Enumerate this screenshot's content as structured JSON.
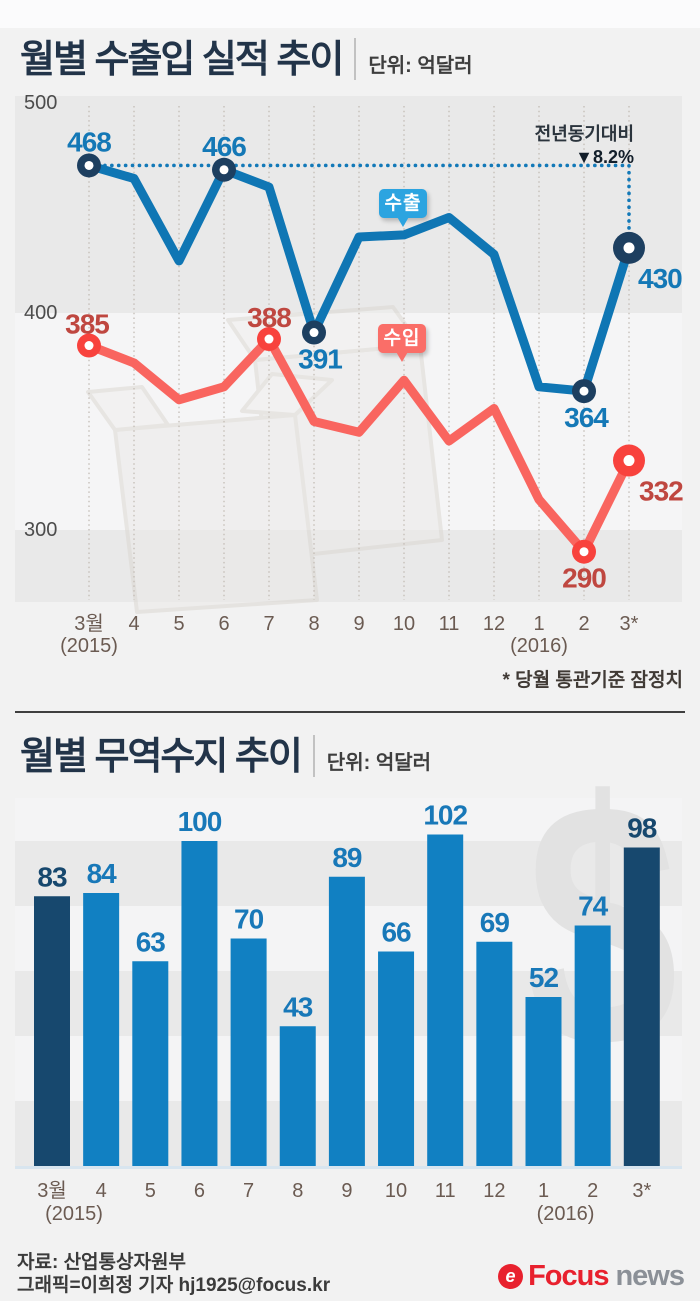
{
  "chart_data": [
    {
      "type": "line",
      "title": "월별 수출입 실적 추이",
      "unit_label": "단위: 억달러",
      "categories": [
        "3월",
        "4",
        "5",
        "6",
        "7",
        "8",
        "9",
        "10",
        "11",
        "12",
        "1",
        "2",
        "3*"
      ],
      "year_labels": [
        {
          "text": "(2015)",
          "month_index": 0
        },
        {
          "text": "(2016)",
          "month_index": 10
        }
      ],
      "yticks": [
        500,
        400,
        300
      ],
      "ylim": [
        265,
        500
      ],
      "annotation": {
        "line1": "전년동기대비",
        "line2": "▼8.2%"
      },
      "footnote": "* 당월 통관기준 잠정치",
      "series": [
        {
          "name": "수출",
          "color": "#0f76b4",
          "marker_color": "#1d3f60",
          "label_color": "#1478b6",
          "values": [
            468,
            462,
            424,
            466,
            458,
            391,
            435,
            436,
            444,
            427,
            366,
            364,
            430
          ],
          "labeled_points": [
            {
              "index": 0,
              "value": 468
            },
            {
              "index": 3,
              "value": 466
            },
            {
              "index": 5,
              "value": 391
            },
            {
              "index": 11,
              "value": 364
            },
            {
              "index": 12,
              "value": 430
            }
          ]
        },
        {
          "name": "수입",
          "color": "#f9655f",
          "marker_color": "#f8423d",
          "label_color": "#bf4740",
          "values": [
            385,
            377,
            360,
            366,
            388,
            350,
            345,
            369,
            341,
            356,
            314,
            290,
            332
          ],
          "labeled_points": [
            {
              "index": 0,
              "value": 385
            },
            {
              "index": 4,
              "value": 388
            },
            {
              "index": 11,
              "value": 290
            },
            {
              "index": 12,
              "value": 332
            }
          ]
        }
      ]
    },
    {
      "type": "bar",
      "title": "월별 무역수지 추이",
      "unit_label": "단위: 억달러",
      "categories": [
        "3월",
        "4",
        "5",
        "6",
        "7",
        "8",
        "9",
        "10",
        "11",
        "12",
        "1",
        "2",
        "3*"
      ],
      "year_labels": [
        {
          "text": "(2015)",
          "month_index": 0
        },
        {
          "text": "(2016)",
          "month_index": 10
        }
      ],
      "values": [
        83,
        84,
        63,
        100,
        70,
        43,
        89,
        66,
        102,
        69,
        52,
        74,
        98
      ],
      "bar_color": "#1180c2",
      "highlight_color": "#17486e",
      "highlight_indices": [
        0,
        12
      ],
      "label_color": "#1878b8",
      "highlight_label_color": "#17486e",
      "ylim": [
        0,
        105
      ],
      "watermark": "$"
    }
  ],
  "footer": {
    "source": "자료: 산업통상자원부",
    "credit": "그래픽=이희정 기자 hj1925@focus.kr",
    "logo": {
      "icon": "e",
      "brand": "Focus",
      "suffix": "news"
    }
  }
}
